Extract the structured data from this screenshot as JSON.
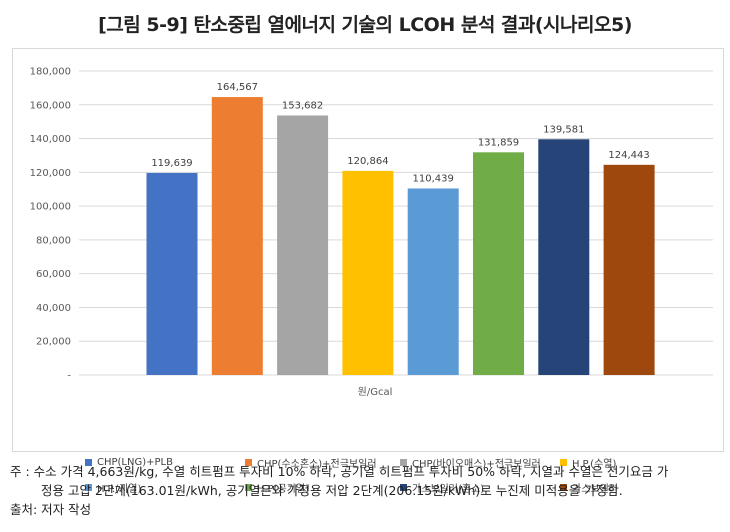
{
  "title": "[그림 5-9] 탄소중립 열에너지 기술의 LCOH 분석 결과(시나리오5)",
  "chart_data": {
    "type": "bar",
    "categories": [
      "CHP(LNG)+PLB",
      "CHP(수소혼소)+전극보일러",
      "CHP(바이오매스)+전극보일러",
      "H.P.(수열)",
      "H.P.(지열)",
      "H.P(공기열)",
      "가스보일러(혼소)",
      "가스보일러"
    ],
    "values": [
      119639,
      164567,
      153682,
      120864,
      110439,
      131859,
      139581,
      124443
    ],
    "value_labels": [
      "119,639",
      "164,567",
      "153,682",
      "120,864",
      "110,439",
      "131,859",
      "139,581",
      "124,443"
    ],
    "colors": [
      "#4472c4",
      "#ed7d31",
      "#a5a5a5",
      "#ffc000",
      "#5b9bd5",
      "#70ad47",
      "#264478",
      "#9e480e"
    ],
    "xlabel": "원/Gcal",
    "ylabel": "",
    "ylim": [
      0,
      180000
    ],
    "yticks": [
      0,
      20000,
      40000,
      60000,
      80000,
      100000,
      120000,
      140000,
      160000,
      180000
    ],
    "ytick_labels": [
      "-",
      "20,000",
      "40,000",
      "60,000",
      "80,000",
      "100,000",
      "120,000",
      "140,000",
      "160,000",
      "180,000"
    ],
    "grid": true,
    "legend_position": "bottom"
  },
  "legend": [
    {
      "label": "CHP(LNG)+PLB",
      "color": "#4472c4"
    },
    {
      "label": "CHP(수소혼소)+전극보일러",
      "color": "#ed7d31"
    },
    {
      "label": "CHP(바이오매스)+전극보일러",
      "color": "#a5a5a5"
    },
    {
      "label": "H.P.(수열)",
      "color": "#ffc000"
    },
    {
      "label": "H.P.(지열)",
      "color": "#5b9bd5"
    },
    {
      "label": "H.P(공기열)",
      "color": "#70ad47"
    },
    {
      "label": "가스보일러(혼소)",
      "color": "#264478"
    },
    {
      "label": "가스보일러",
      "color": "#9e480e"
    }
  ],
  "notes": {
    "line1": "주 : 수소 가격 4,663원/kg, 수열 히트펌프 투자비 10% 하락, 공기열 히트펌프 투자비 50% 하락, 지열과 수열은 전기요금 가",
    "line2": "정용 고압 2단계(163.01원/kWh, 공기열은와 가정용 저압 2단계(206.15원/kWh)로 누진제 미적용을 가정함.",
    "line3": "출처: 저자 작성"
  }
}
